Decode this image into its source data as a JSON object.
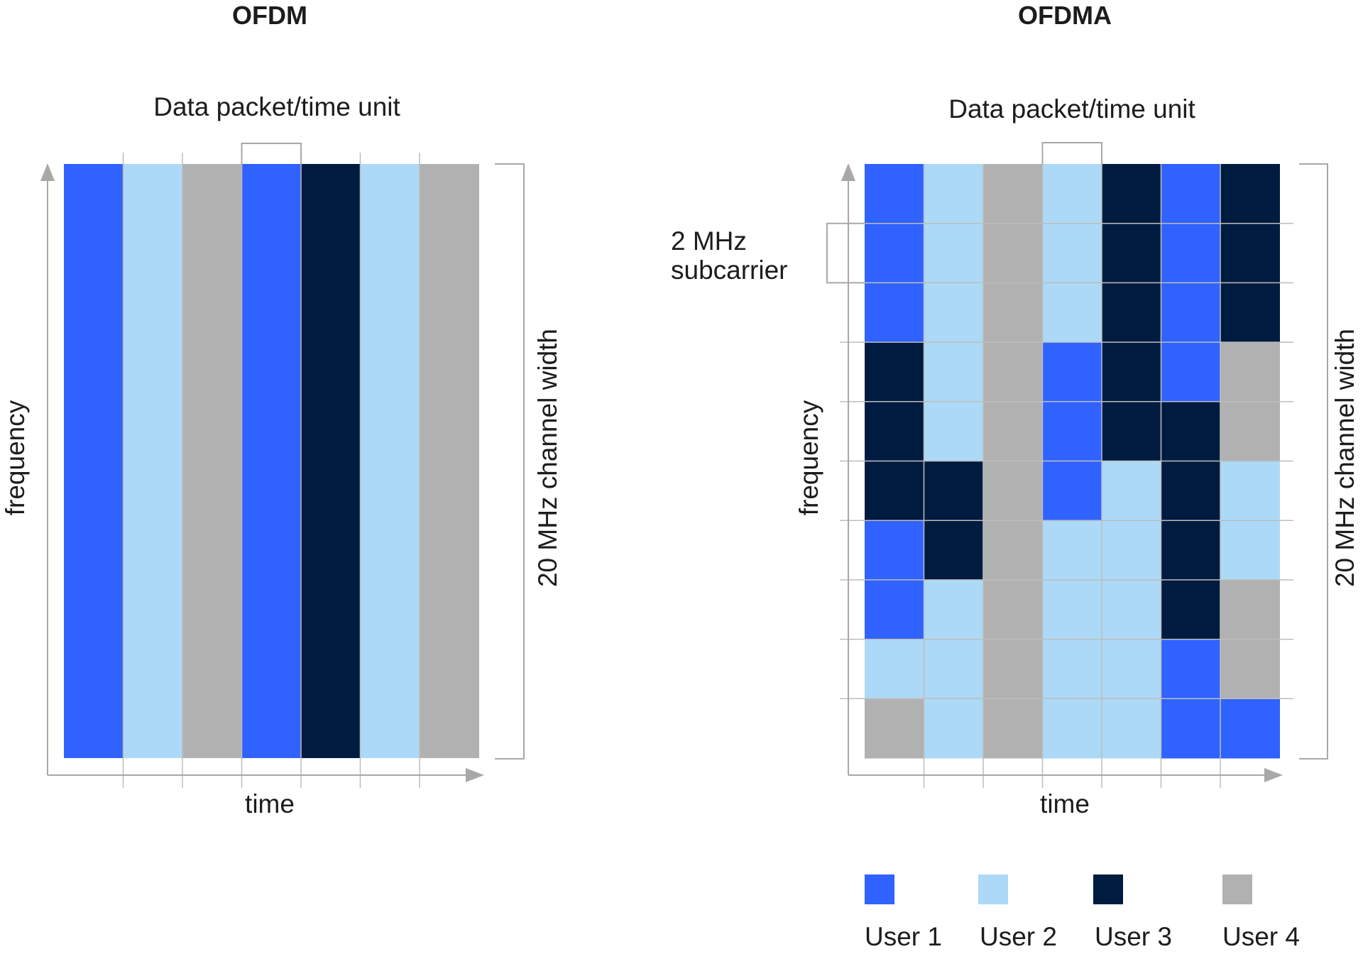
{
  "colors": {
    "user1": "#2f62ff",
    "user2": "#acd9f7",
    "user3": "#001b40",
    "user4": "#b1b1b1",
    "axis": "#a8a8a8",
    "grid": "#bdbdbd"
  },
  "ofdm": {
    "title": "OFDM",
    "packet_label": "Data packet/time unit",
    "x_label": "time",
    "y_label": "frequency",
    "width_label": "20 MHz channel width",
    "columns": [
      "user1",
      "user2",
      "user4",
      "user1",
      "user3",
      "user2",
      "user4"
    ]
  },
  "ofdma": {
    "title": "OFDMA",
    "packet_label": "Data packet/time unit",
    "x_label": "time",
    "y_label": "frequency",
    "width_label": "20 MHz channel width",
    "subcarrier_label_line1": "2 MHz",
    "subcarrier_label_line2": "subcarrier",
    "grid": [
      [
        "user1",
        "user2",
        "user4",
        "user2",
        "user3",
        "user1",
        "user3"
      ],
      [
        "user1",
        "user2",
        "user4",
        "user2",
        "user3",
        "user1",
        "user3"
      ],
      [
        "user1",
        "user2",
        "user4",
        "user2",
        "user3",
        "user1",
        "user3"
      ],
      [
        "user3",
        "user2",
        "user4",
        "user1",
        "user3",
        "user1",
        "user4"
      ],
      [
        "user3",
        "user2",
        "user4",
        "user1",
        "user3",
        "user3",
        "user4"
      ],
      [
        "user3",
        "user3",
        "user4",
        "user1",
        "user2",
        "user3",
        "user2"
      ],
      [
        "user1",
        "user3",
        "user4",
        "user2",
        "user2",
        "user3",
        "user2"
      ],
      [
        "user1",
        "user2",
        "user4",
        "user2",
        "user2",
        "user3",
        "user4"
      ],
      [
        "user2",
        "user2",
        "user4",
        "user2",
        "user2",
        "user1",
        "user4"
      ],
      [
        "user4",
        "user2",
        "user4",
        "user2",
        "user2",
        "user1",
        "user1"
      ]
    ]
  },
  "legend": [
    {
      "key": "user1",
      "label": "User 1"
    },
    {
      "key": "user2",
      "label": "User 2"
    },
    {
      "key": "user3",
      "label": "User 3"
    },
    {
      "key": "user4",
      "label": "User 4"
    }
  ]
}
